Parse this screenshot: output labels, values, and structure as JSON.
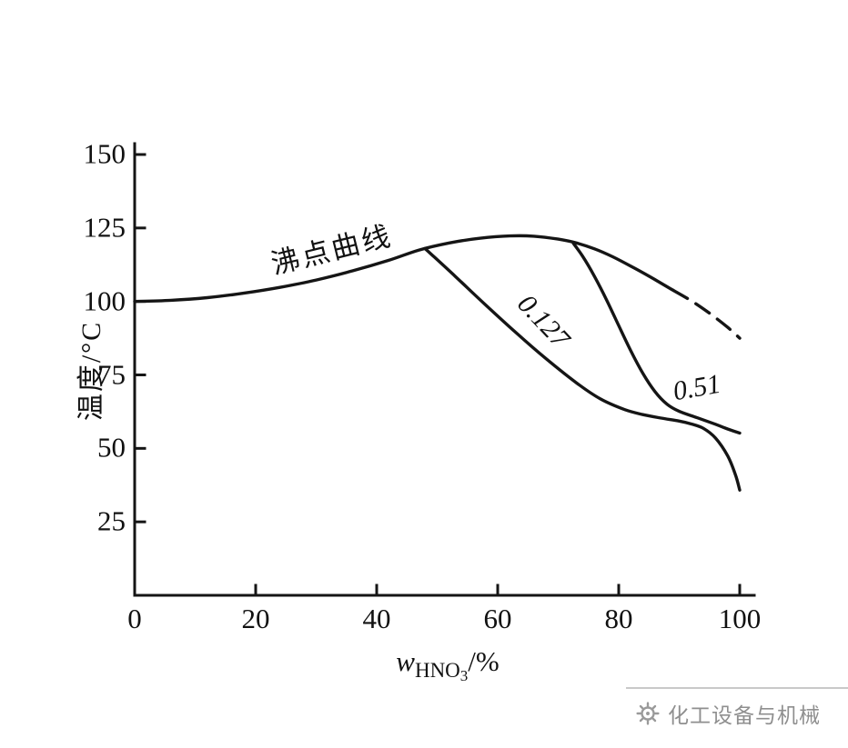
{
  "chart_data": {
    "type": "line",
    "title": "",
    "ylabel": "温度/°C",
    "xlabel": {
      "var": "w",
      "sub_main": "HNO",
      "sub_sub": "3",
      "suffix": "/%"
    },
    "xlim": [
      0,
      100
    ],
    "ylim": [
      0,
      150
    ],
    "x_ticks": [
      0,
      20,
      40,
      60,
      80,
      100
    ],
    "y_ticks": [
      25,
      50,
      75,
      100,
      125,
      150
    ],
    "grid": false,
    "line_color": "#151515",
    "series": [
      {
        "id": "boiling-point-curve",
        "name": "沸点曲线",
        "style": "solid",
        "points": [
          [
            0,
            100
          ],
          [
            6,
            100.4
          ],
          [
            12,
            101.3
          ],
          [
            18,
            102.8
          ],
          [
            24,
            104.8
          ],
          [
            30,
            107.3
          ],
          [
            36,
            110.4
          ],
          [
            42,
            114.0
          ],
          [
            47,
            117.5
          ],
          [
            52,
            119.9
          ],
          [
            57,
            121.5
          ],
          [
            62,
            122.3
          ],
          [
            66,
            122.2
          ],
          [
            70,
            121.2
          ],
          [
            73,
            119.9
          ],
          [
            76,
            117.9
          ],
          [
            79,
            115.2
          ],
          [
            82,
            112.0
          ],
          [
            85,
            108.6
          ],
          [
            87,
            106.2
          ],
          [
            89,
            103.8
          ]
        ]
      },
      {
        "id": "boiling-point-curve-dashed",
        "name": "沸点曲线(虚线段)",
        "style": "dashed",
        "points": [
          [
            89,
            103.8
          ],
          [
            92,
            100.2
          ],
          [
            95,
            96.0
          ],
          [
            98,
            91.2
          ],
          [
            100,
            87.5
          ]
        ]
      },
      {
        "id": "pressure-curve-0.127",
        "name": "0.127",
        "style": "solid",
        "points": [
          [
            48,
            118.0
          ],
          [
            53,
            108.5
          ],
          [
            58,
            98.8
          ],
          [
            63,
            89.4
          ],
          [
            68,
            80.5
          ],
          [
            73,
            72.3
          ],
          [
            77,
            66.8
          ],
          [
            81,
            63.2
          ],
          [
            84,
            61.5
          ],
          [
            87,
            60.3
          ],
          [
            90,
            59.3
          ],
          [
            92,
            58.3
          ],
          [
            94,
            56.8
          ],
          [
            96,
            53.5
          ],
          [
            98,
            47.5
          ],
          [
            99.3,
            41.0
          ],
          [
            100,
            35.8
          ]
        ]
      },
      {
        "id": "pressure-curve-0.51",
        "name": "0.51",
        "style": "solid",
        "points": [
          [
            72.5,
            119.8
          ],
          [
            74,
            115.5
          ],
          [
            76,
            108.5
          ],
          [
            78,
            100.5
          ],
          [
            80,
            91.8
          ],
          [
            82,
            83.2
          ],
          [
            84,
            75.5
          ],
          [
            86,
            69.3
          ],
          [
            88,
            65.0
          ],
          [
            90,
            62.6
          ],
          [
            93,
            60.4
          ],
          [
            96,
            58.2
          ],
          [
            98,
            56.6
          ],
          [
            100,
            55.2
          ]
        ]
      }
    ],
    "annotations": [
      {
        "text": "沸点曲线",
        "x": 32.5,
        "y": 118.5,
        "rotation": -14
      },
      {
        "text": "0.127",
        "x": 67.5,
        "y": 93,
        "rotation": 47
      },
      {
        "text": "0.51",
        "x": 93,
        "y": 70.5,
        "rotation": -10
      }
    ]
  },
  "footer": {
    "brand": "化工设备与机械"
  }
}
